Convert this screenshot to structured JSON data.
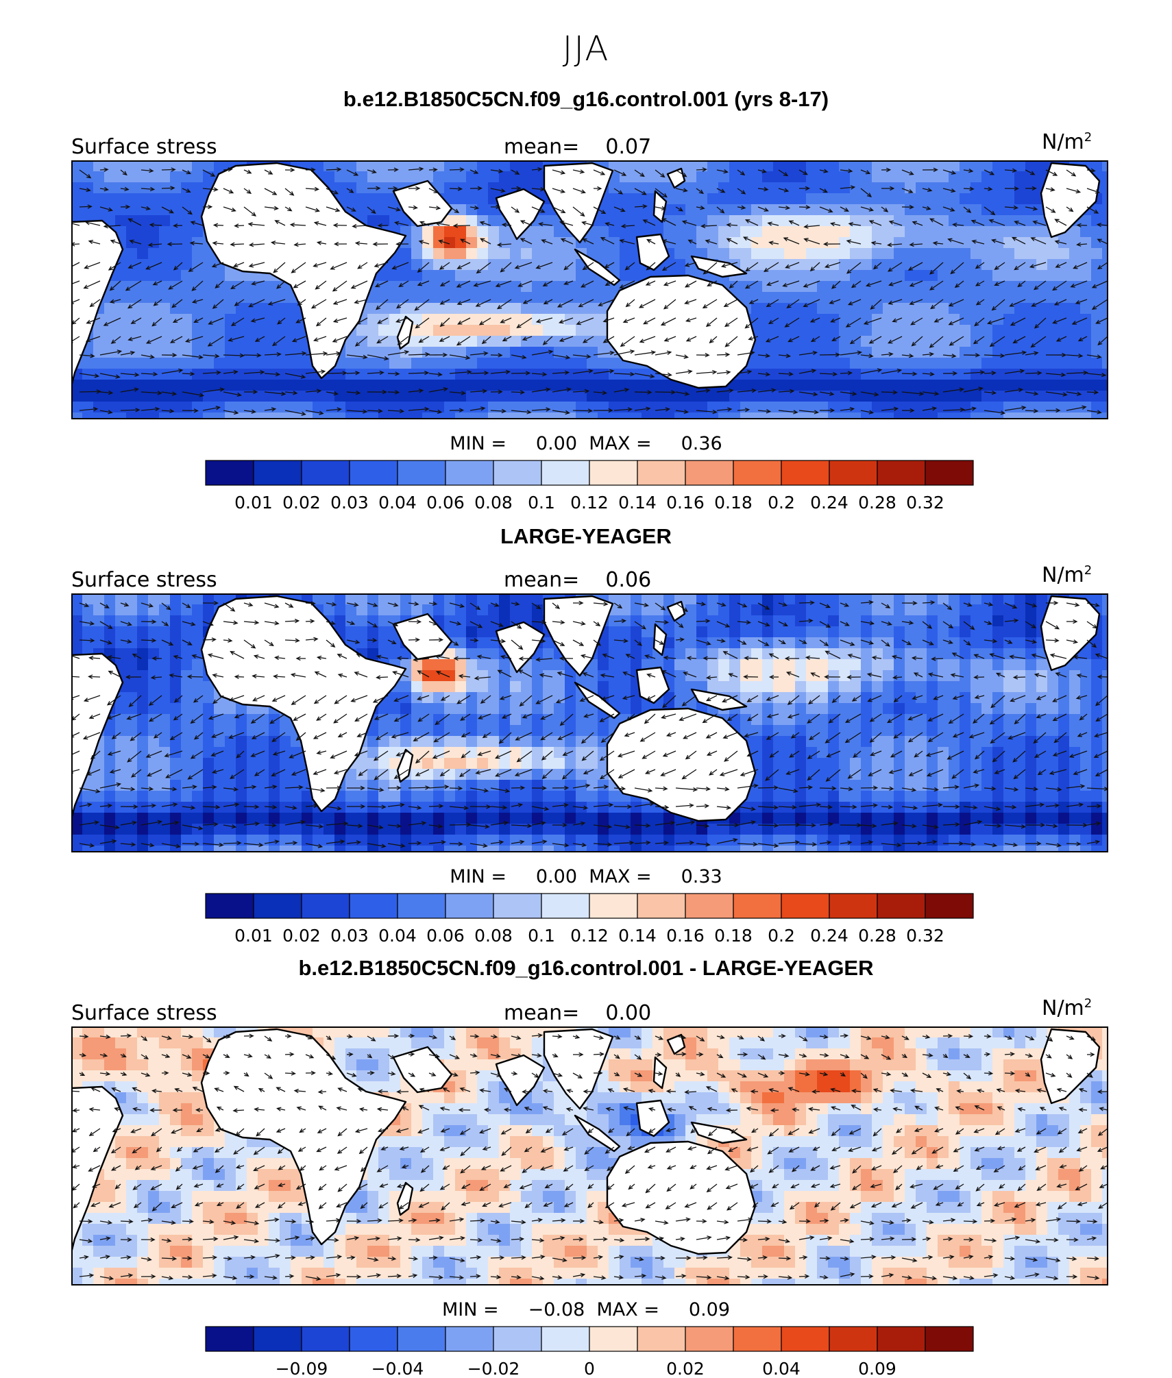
{
  "figure": {
    "season": "JJA"
  },
  "colormap": [
    "#08118a",
    "#0a2fb8",
    "#1c45d6",
    "#2e5fe9",
    "#4b7ced",
    "#7ea2f3",
    "#adc4f6",
    "#d8e6fb",
    "#fde6d5",
    "#f9c4a7",
    "#f59b77",
    "#f2703f",
    "#e84a1c",
    "#cf3410",
    "#a81d0a",
    "#7e0b06"
  ],
  "panels": [
    {
      "title": "b.e12.B1850C5CN.f09_g16.control.001 (yrs 8-17)",
      "variable": "Surface stress",
      "mean_label": "mean=",
      "mean_value": "0.07",
      "units": "N/m",
      "units_sup": "2",
      "min_label": "MIN =",
      "min_value": "0.00",
      "max_label": "MAX =",
      "max_value": "0.36",
      "colorbar_ticks": [
        "0.01",
        "0.02",
        "0.03",
        "0.04",
        "0.06",
        "0.08",
        "0.1",
        "0.12",
        "0.14",
        "0.16",
        "0.18",
        "0.2",
        "0.24",
        "0.28",
        "0.32"
      ]
    },
    {
      "title": "LARGE-YEAGER",
      "variable": "Surface stress",
      "mean_label": "mean=",
      "mean_value": "0.06",
      "units": "N/m",
      "units_sup": "2",
      "min_label": "MIN =",
      "min_value": "0.00",
      "max_label": "MAX =",
      "max_value": "0.33",
      "colorbar_ticks": [
        "0.01",
        "0.02",
        "0.03",
        "0.04",
        "0.06",
        "0.08",
        "0.1",
        "0.12",
        "0.14",
        "0.16",
        "0.18",
        "0.2",
        "0.24",
        "0.28",
        "0.32"
      ]
    },
    {
      "title": "b.e12.B1850C5CN.f09_g16.control.001 - LARGE-YEAGER",
      "variable": "Surface stress",
      "mean_label": "mean=",
      "mean_value": "0.00",
      "units": "N/m",
      "units_sup": "2",
      "min_label": "MIN =",
      "min_value": "−0.08",
      "max_label": "MAX =",
      "max_value": "0.09",
      "colorbar_ticks": [
        "",
        "−0.09",
        "",
        "−0.04",
        "",
        "−0.02",
        "",
        "0",
        "",
        "0.02",
        "",
        "0.04",
        "",
        "0.09",
        ""
      ]
    }
  ]
}
